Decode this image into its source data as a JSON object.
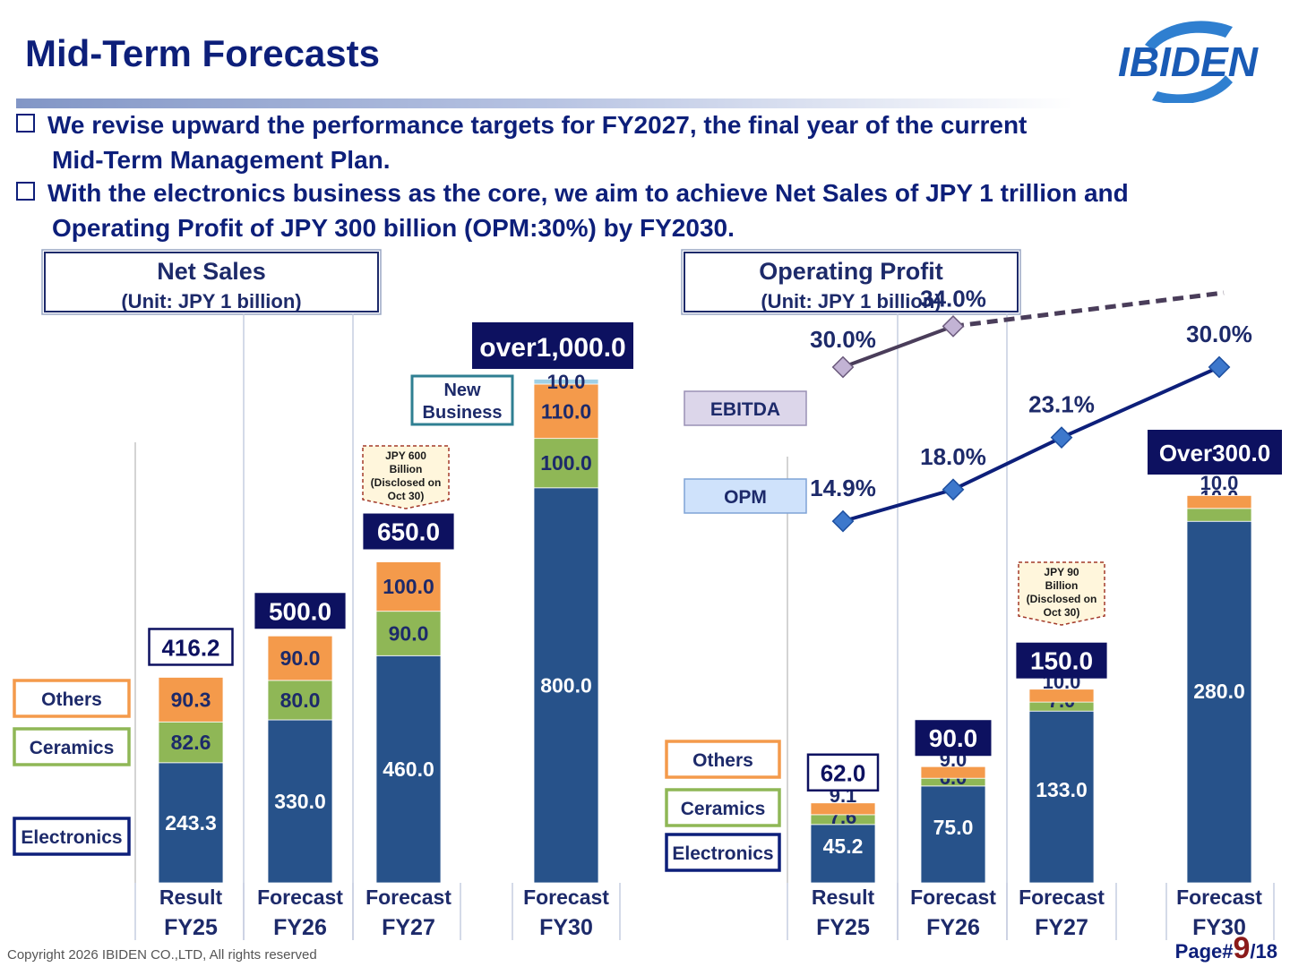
{
  "page": {
    "title": "Mid-Term Forecasts",
    "logo_text": "IBIDEN",
    "bullets": [
      {
        "line1": "We revise upward the performance targets for FY2027, the final year of the current",
        "line2": "Mid-Term Management Plan."
      },
      {
        "line1": "With the electronics business as the core, we aim to achieve Net Sales of JPY 1 trillion and",
        "line2": "Operating Profit of JPY 300 billion (OPM:30%) by FY2030."
      }
    ],
    "copyright": "Copyright 2026 IBIDEN CO.,LTD, All rights reserved",
    "page_label": "Page#",
    "page_current": "9",
    "page_total": "/18"
  },
  "colors": {
    "electronics": "#27528a",
    "ceramics": "#8fb756",
    "others": "#f49a4b",
    "new_business": "#9fd0e6",
    "navy": "#0d1f7a",
    "ebitda_line": "#4a3d5a"
  },
  "chart_data": [
    {
      "type": "bar",
      "stacked": true,
      "title": "Net Sales",
      "subtitle": "(Unit: JPY 1 billion)",
      "categories": [
        {
          "status": "Result",
          "year": "FY25"
        },
        {
          "status": "Forecast",
          "year": "FY26"
        },
        {
          "status": "Forecast",
          "year": "FY27"
        },
        {
          "status": "Forecast",
          "year": "FY30"
        }
      ],
      "series": [
        {
          "name": "Electronics",
          "color_key": "electronics",
          "values": [
            243.3,
            330.0,
            460.0,
            800.0
          ],
          "labels": [
            "243.3",
            "330.0",
            "460.0",
            "800.0"
          ]
        },
        {
          "name": "Ceramics",
          "color_key": "ceramics",
          "values": [
            82.6,
            80.0,
            90.0,
            100.0
          ],
          "labels": [
            "82.6",
            "80.0",
            "90.0",
            "100.0"
          ]
        },
        {
          "name": "Others",
          "color_key": "others",
          "values": [
            90.3,
            90.0,
            100.0,
            110.0
          ],
          "labels": [
            "90.3",
            "90.0",
            "100.0",
            "110.0"
          ]
        },
        {
          "name": "New Business",
          "color_key": "new_business",
          "values": [
            0,
            0,
            0,
            10.0
          ],
          "labels": [
            "",
            "",
            "",
            "10.0"
          ]
        }
      ],
      "totals": [
        "416.2",
        "500.0",
        "650.0",
        "over1,000.0"
      ],
      "legend": [
        "Others",
        "Ceramics",
        "Electronics"
      ],
      "annotations": {
        "new_business": "New Business",
        "disclosed": [
          "JPY 600",
          "Billion",
          "(Disclosed on",
          "Oct 30)"
        ]
      },
      "ylim": [
        0,
        1030
      ]
    },
    {
      "type": "bar",
      "stacked": true,
      "title": "Operating Profit",
      "subtitle": "(Unit: JPY 1 billion)",
      "categories": [
        {
          "status": "Result",
          "year": "FY25"
        },
        {
          "status": "Forecast",
          "year": "FY26"
        },
        {
          "status": "Forecast",
          "year": "FY27"
        },
        {
          "status": "Forecast",
          "year": "FY30"
        }
      ],
      "series": [
        {
          "name": "Electronics",
          "color_key": "electronics",
          "values": [
            45.2,
            75.0,
            133.0,
            280.0
          ],
          "labels": [
            "45.2",
            "75.0",
            "133.0",
            "280.0"
          ]
        },
        {
          "name": "Ceramics",
          "color_key": "ceramics",
          "values": [
            7.6,
            6.0,
            7.0,
            10.0
          ],
          "labels": [
            "7.6",
            "6.0",
            "7.0",
            "10.0"
          ]
        },
        {
          "name": "Others",
          "color_key": "others",
          "values": [
            9.1,
            9.0,
            10.0,
            10.0
          ],
          "labels": [
            "9.1",
            "9.0",
            "10.0",
            "10.0"
          ]
        }
      ],
      "totals": [
        "62.0",
        "90.0",
        "150.0",
        "Over300.0"
      ],
      "legend": [
        "Others",
        "Ceramics",
        "Electronics"
      ],
      "annotations": {
        "disclosed": [
          "JPY 90",
          "Billion",
          "(Disclosed on",
          "Oct 30)"
        ]
      },
      "lines": [
        {
          "name": "EBITDA",
          "values": [
            30.0,
            34.0
          ],
          "labels": [
            "30.0%",
            "34.0%"
          ],
          "dashed_extension_to": "FY30",
          "style": "dashed after FY26"
        },
        {
          "name": "OPM",
          "values": [
            14.9,
            18.0,
            23.1,
            30.0
          ],
          "labels": [
            "14.9%",
            "18.0%",
            "23.1%",
            "30.0%"
          ]
        }
      ],
      "ylim": [
        0,
        310
      ]
    }
  ]
}
